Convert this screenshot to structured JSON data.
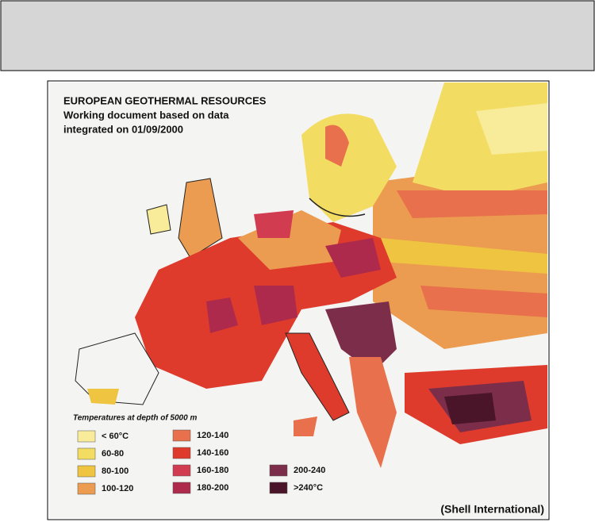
{
  "map": {
    "title": "EUROPEAN GEOTHERMAL RESOURCES",
    "subtitle_lines": [
      "Working document based on data",
      "integrated on 01/09/2000"
    ],
    "legend_title": "Temperatures at depth of 5000 m",
    "legend": [
      {
        "label": "< 60°C",
        "color": "#f8ec9a"
      },
      {
        "label": "60-80",
        "color": "#f3dc62"
      },
      {
        "label": "80-100",
        "color": "#efc440"
      },
      {
        "label": "100-120",
        "color": "#ec9c50"
      },
      {
        "label": "120-140",
        "color": "#e8704c"
      },
      {
        "label": "140-160",
        "color": "#de3b2c"
      },
      {
        "label": "160-180",
        "color": "#d23c50"
      },
      {
        "label": "180-200",
        "color": "#ad2a4c"
      },
      {
        "label": "200-240",
        "color": "#7b2d4a"
      },
      {
        "label": ">240°C",
        "color": "#4a1528"
      }
    ],
    "credit": "(Shell International)"
  }
}
